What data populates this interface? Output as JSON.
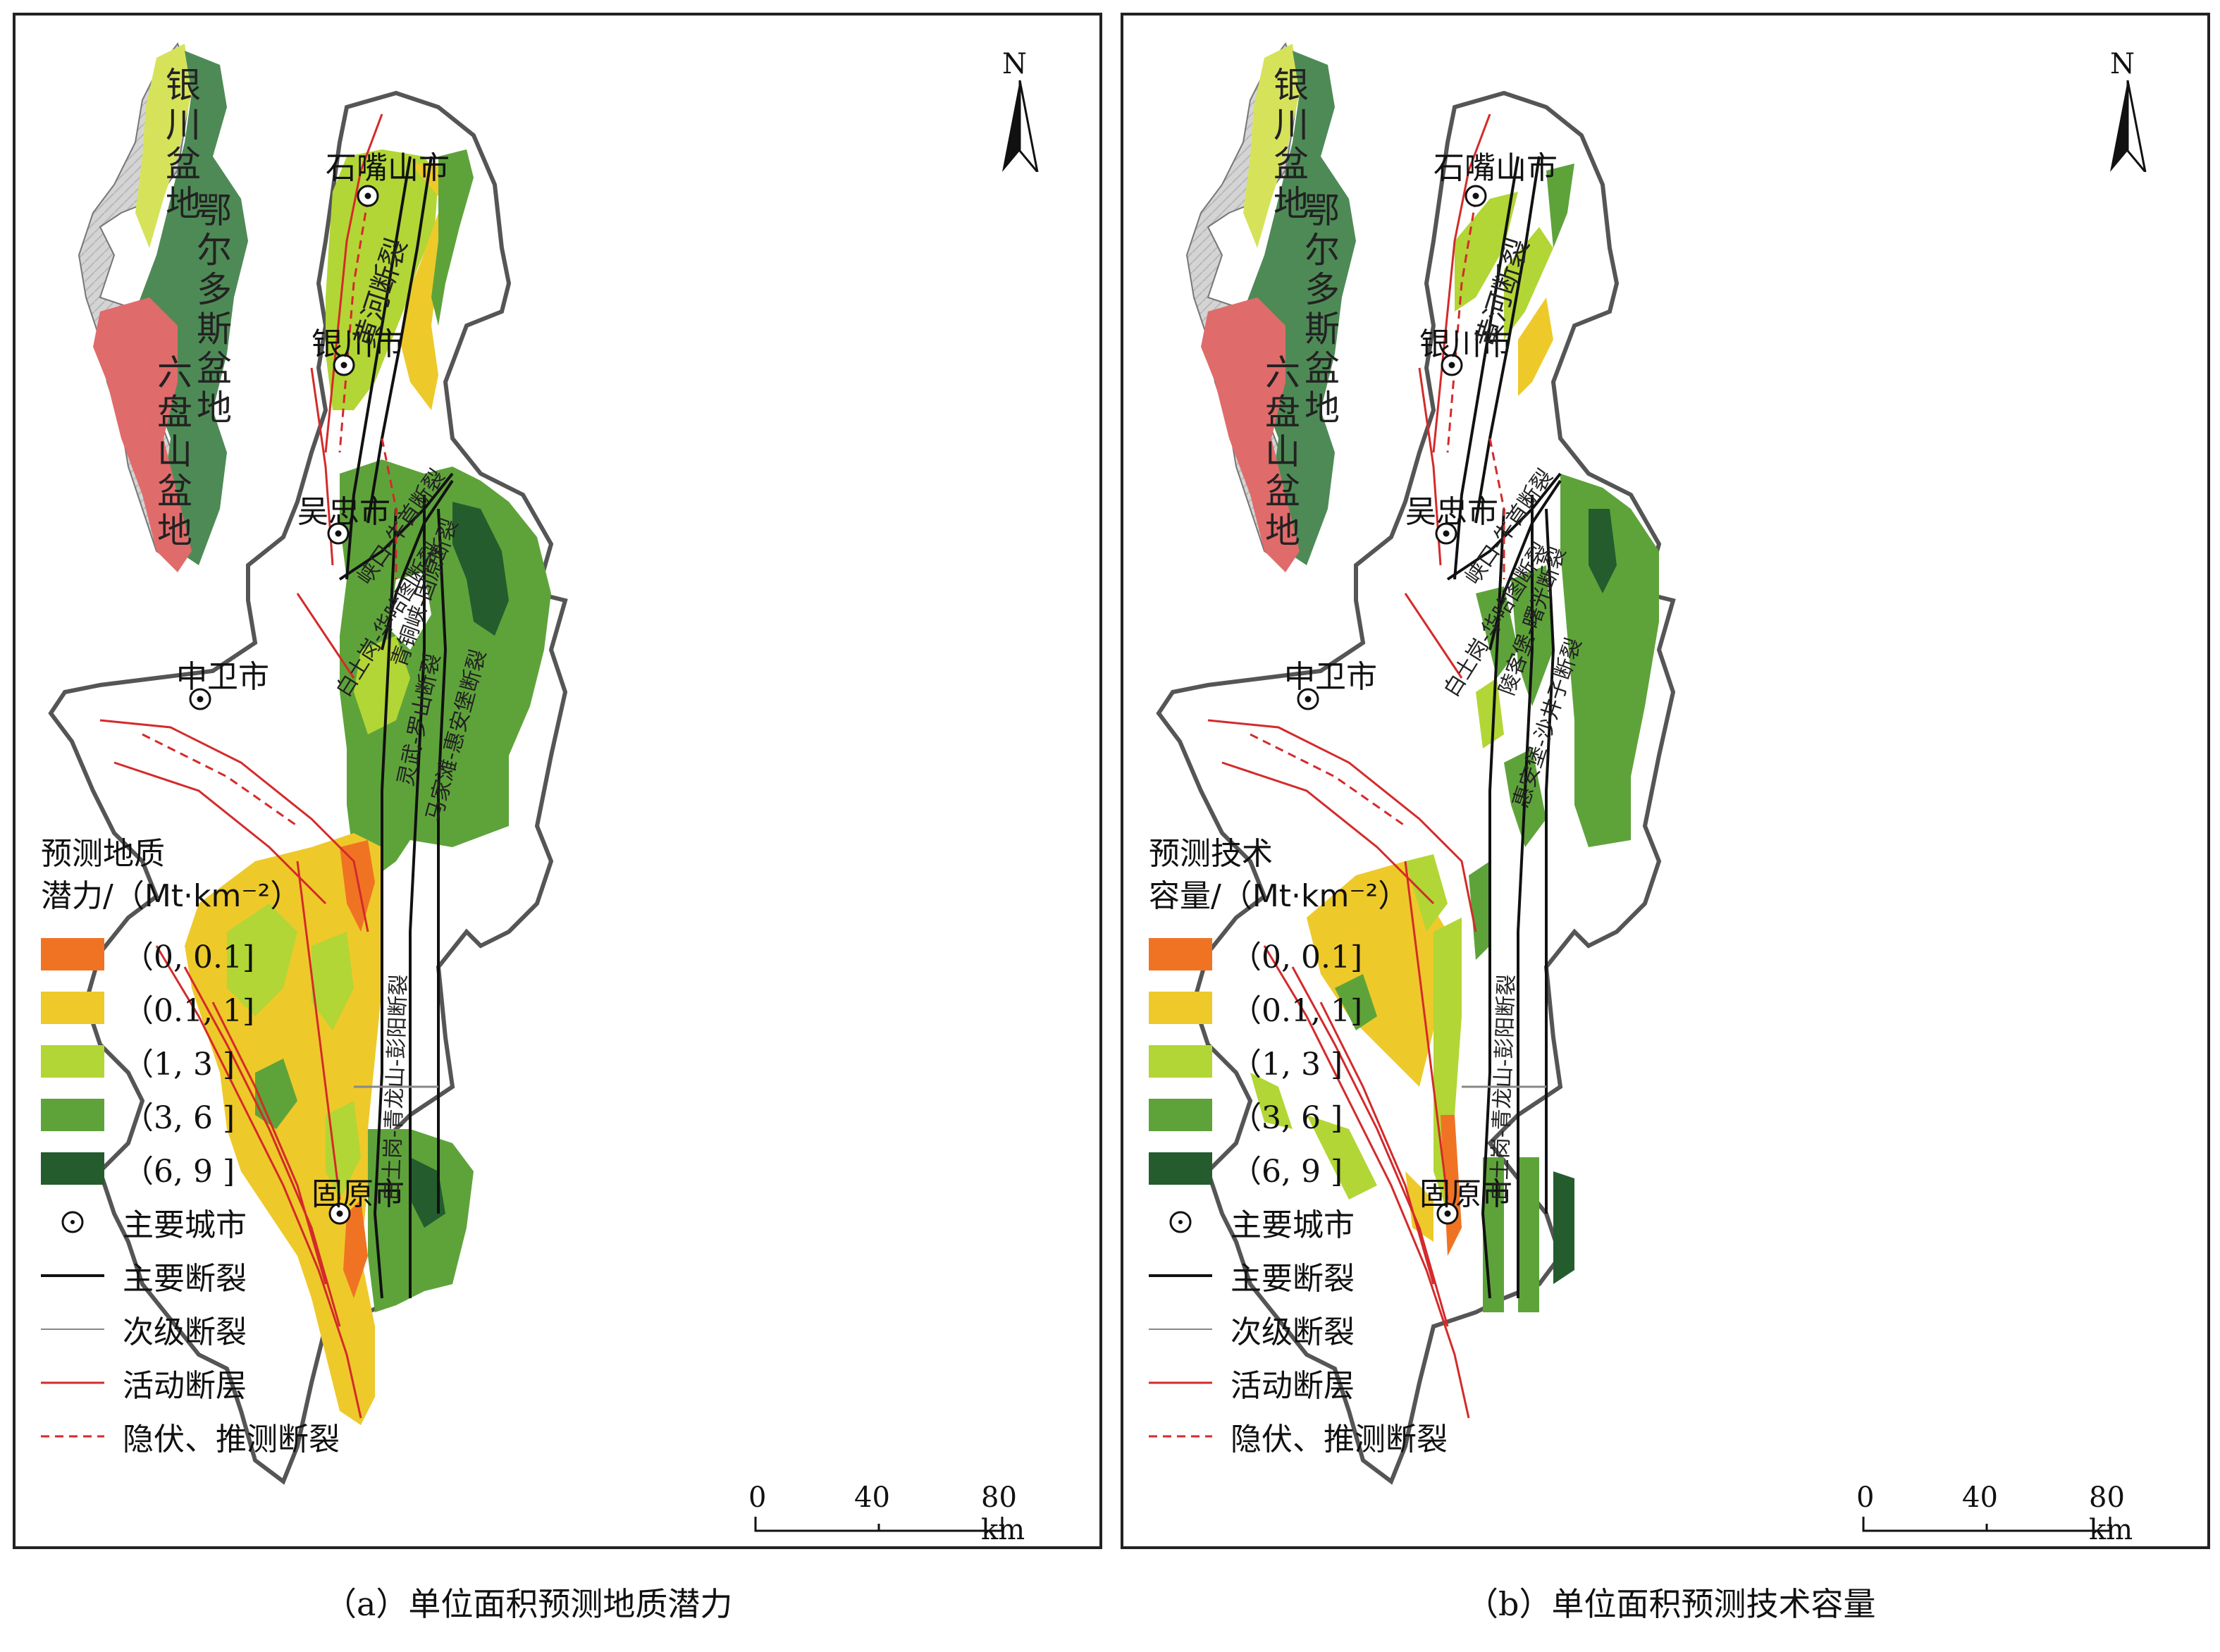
{
  "north_label": "N",
  "panels": [
    {
      "id": "a",
      "legend_title_1": "预测地质",
      "legend_title_2": "潜力/（Mt·km⁻²）",
      "caption": "（a）单位面积预测地质潜力"
    },
    {
      "id": "b",
      "legend_title_1": "预测技术",
      "legend_title_2": "容量/（Mt·km⁻²）",
      "caption": "（b）单位面积预测技术容量"
    }
  ],
  "legend_classes": [
    {
      "label": "（0, 0.1]",
      "color": "#f07324"
    },
    {
      "label": "（0.1, 1]",
      "color": "#eec92a"
    },
    {
      "label": "（1, 3 ]",
      "color": "#b2d635"
    },
    {
      "label": "（3, 6 ]",
      "color": "#5ea33a"
    },
    {
      "label": "（6, 9 ]",
      "color": "#245c2e"
    }
  ],
  "legend_symbols": [
    {
      "label": "主要城市",
      "icon": "city-icon"
    },
    {
      "label": "主要断裂",
      "icon": "main-fault-line",
      "color": "#111111"
    },
    {
      "label": "次级断裂",
      "icon": "secondary-fault-line",
      "color": "#888888"
    },
    {
      "label": "活动断层",
      "icon": "active-fault-line",
      "color": "#d42a2a"
    },
    {
      "label": "隐伏、推测断裂",
      "icon": "inferred-fault-line",
      "color": "#d42a2a"
    }
  ],
  "inset_labels": {
    "yinchuan_basin": "银川盆地",
    "ordos_basin": "鄂尔多斯盆地",
    "liupanshan_basin": "六盘山盆地"
  },
  "inset_colors": {
    "yinchuan_basin": "#d6e35a",
    "ordos_basin": "#4e8a56",
    "liupanshan_basin": "#e06b6b",
    "terrain": "#cfcfcf"
  },
  "cities": {
    "shizuishan": "石嘴山市",
    "yinchuan": "银川市",
    "wuzhong": "吴忠市",
    "zhongwei": "中卫市",
    "guyuan": "固原市"
  },
  "fault_names": {
    "yellow_river": "黄河断裂",
    "xiakou": "峡口-牛首断裂",
    "baitugang_a": "白土岗-华哈图断裂",
    "qingtongxia": "青铜峡-固原断裂",
    "lingwu": "灵武-罗山断裂",
    "mahuangshan": "马家滩-惠安堡断裂",
    "baitugang_b": "白土岗-青龙山-彭阳断裂"
  },
  "fault_names_b": {
    "yellow_river": "黄河断裂",
    "xiakou": "峡口-牛首断裂",
    "baitugang_a": "白土岗-华哈图断裂",
    "mahuang": "陵客堡-曙光断裂",
    "lingwu": "惠安堡-沙井子断裂",
    "baitugang_b": "白土岗-青龙山-彭阳断裂"
  },
  "scale_bar": {
    "labels": [
      "0",
      "40",
      "80 km"
    ]
  }
}
